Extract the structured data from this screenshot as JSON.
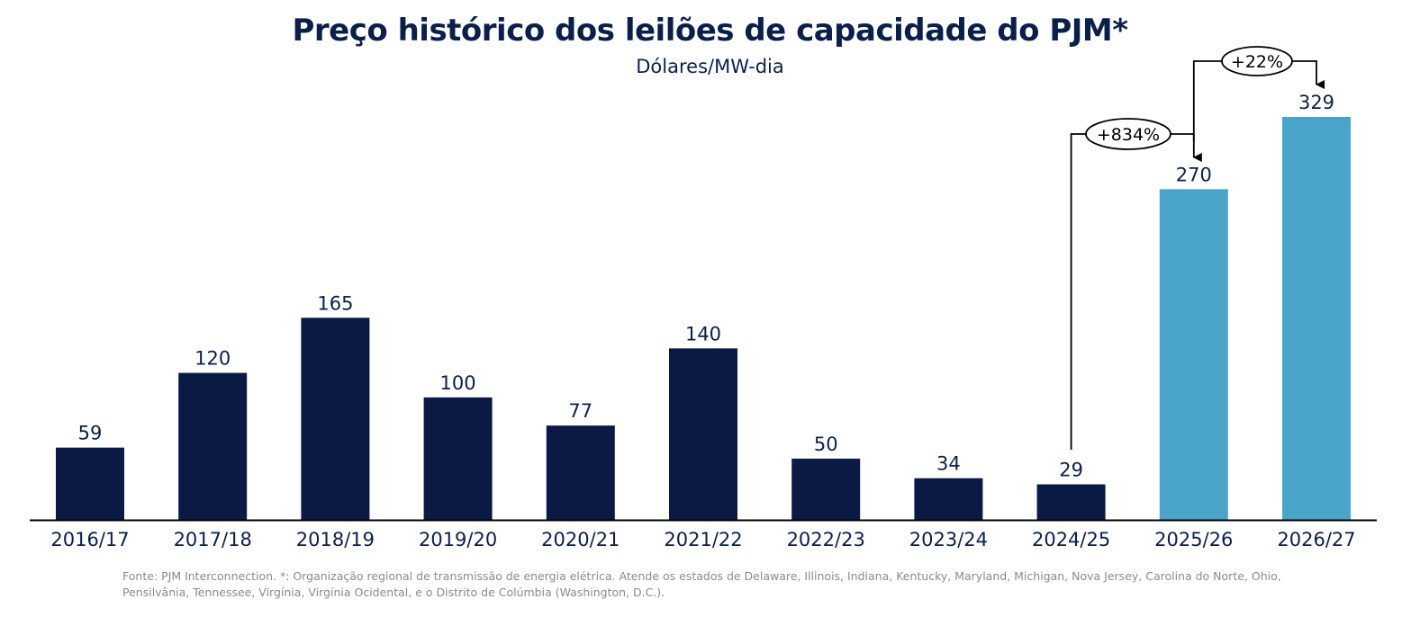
{
  "header": {
    "title": "Preço histórico dos leilões de capacidade do PJM*",
    "subtitle": "Dólares/MW-dia"
  },
  "chart_data": {
    "type": "bar",
    "categories": [
      "2016/17",
      "2017/18",
      "2018/19",
      "2019/20",
      "2020/21",
      "2021/22",
      "2022/23",
      "2023/24",
      "2024/25",
      "2025/26",
      "2026/27"
    ],
    "values": [
      59,
      120,
      165,
      100,
      77,
      140,
      50,
      34,
      29,
      270,
      329
    ],
    "colors": [
      "#0b1a45",
      "#0b1a45",
      "#0b1a45",
      "#0b1a45",
      "#0b1a45",
      "#0b1a45",
      "#0b1a45",
      "#0b1a45",
      "#0b1a45",
      "#4aa3c9",
      "#4aa3c9"
    ],
    "ylim": [
      0,
      329
    ],
    "xlabel": "",
    "ylabel": "",
    "grid": false,
    "annotations": [
      {
        "from": "2024/25",
        "to": "2025/26",
        "label": "+834%"
      },
      {
        "from": "2025/26",
        "to": "2026/27",
        "label": "+22%"
      }
    ]
  },
  "colors": {
    "dark_bar": "#0b1a45",
    "light_bar": "#4aa3c9",
    "text": "#0b1f4b",
    "footnote": "#8a8a8a"
  },
  "footnote": "Fonte: PJM Interconnection. *: Organização regional de transmissão de energia elétrica. Atende os estados de Delaware, Illinois, Indiana, Kentucky, Maryland, Michigan, Nova Jersey, Carolina do Norte, Ohio, Pensilvânia, Tennessee, Virgínia, Virgínia Ocidental, e o Distrito de Colúmbia (Washington, D.C.)."
}
